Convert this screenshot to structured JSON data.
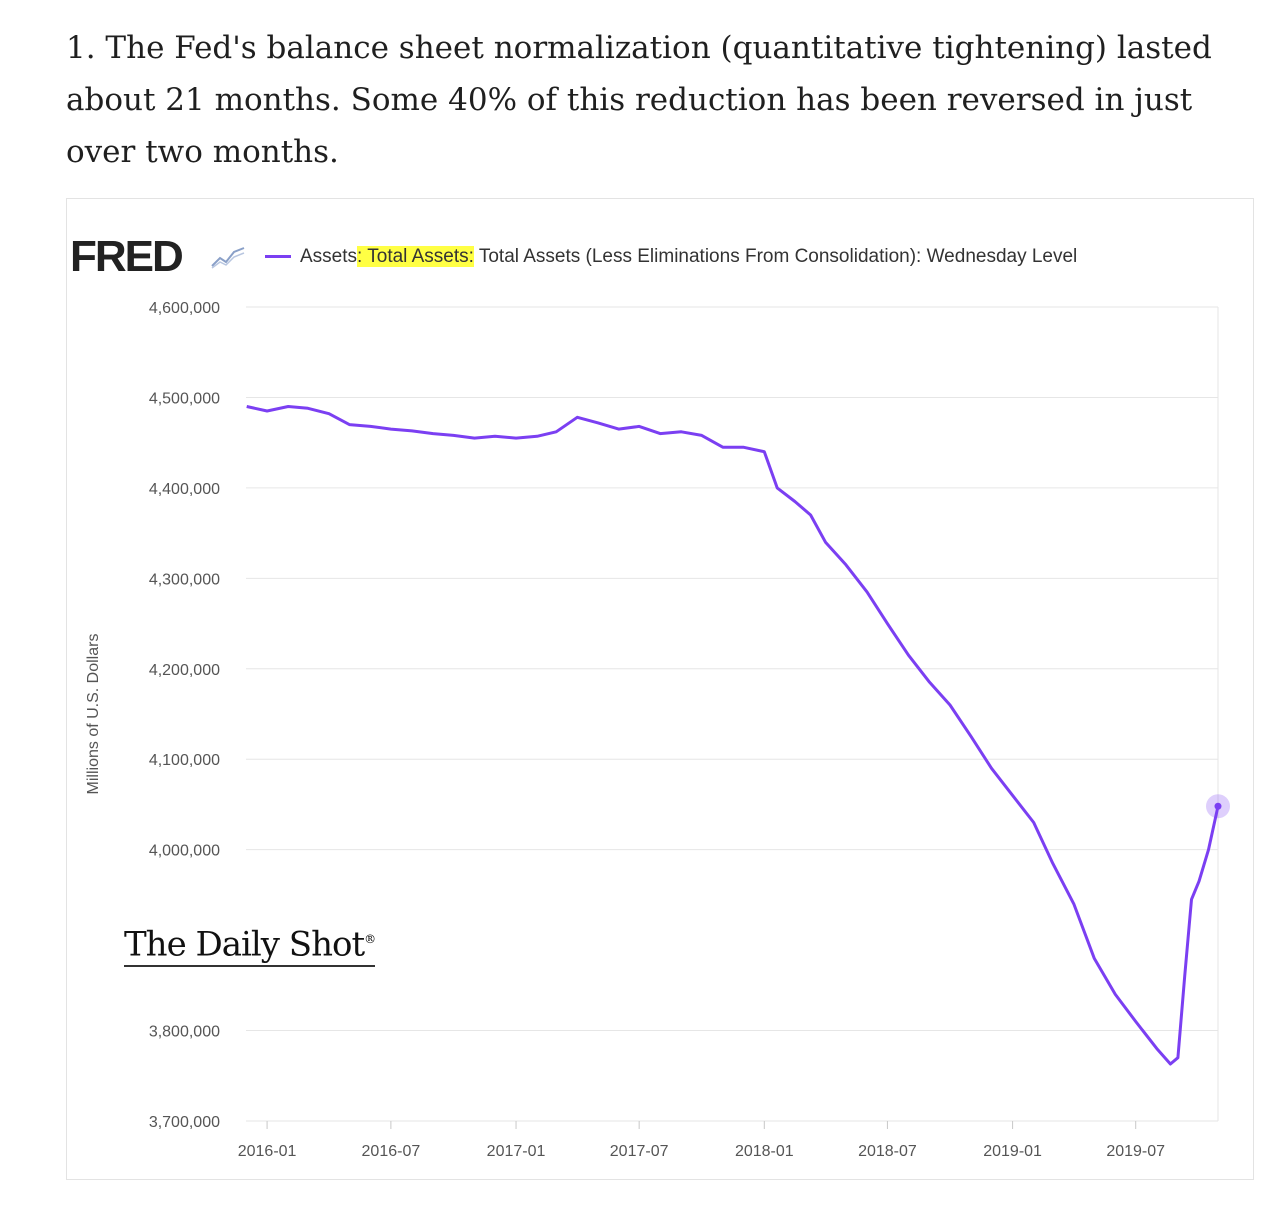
{
  "intro": {
    "text": "1. The Fed's balance sheet normalization (quantitative tightening) lasted about 21 months. Some 40% of this reduction has been reversed in just over two months."
  },
  "brand": {
    "name": "FRED",
    "icon": "line-chart-icon"
  },
  "watermark": {
    "name": "The Daily Shot",
    "mark": "®"
  },
  "colors": {
    "series": "#7b3ff2",
    "highlight": "#ffff44",
    "grid": "#e6e6e6"
  },
  "chart_data": {
    "type": "line",
    "legend": {
      "prefix": "Assets",
      "highlight": ": Total Assets:",
      "suffix": " Total Assets (Less Eliminations From Consolidation): Wednesday Level"
    },
    "ylabel": "Millions of U.S. Dollars",
    "ylim": [
      3700000,
      4600000
    ],
    "yticks": [
      {
        "value": 3700000,
        "label": "3,700,000"
      },
      {
        "value": 3800000,
        "label": "3,800,000"
      },
      {
        "value": 4000000,
        "label": "4,000,000"
      },
      {
        "value": 4100000,
        "label": "4,100,000"
      },
      {
        "value": 4200000,
        "label": "4,200,000"
      },
      {
        "value": 4300000,
        "label": "4,300,000"
      },
      {
        "value": 4400000,
        "label": "4,400,000"
      },
      {
        "value": 4500000,
        "label": "4,500,000"
      },
      {
        "value": 4600000,
        "label": "4,600,000"
      }
    ],
    "xlim": [
      "2015-12-01",
      "2019-10-30"
    ],
    "xticks": [
      "2016-01",
      "2016-07",
      "2017-01",
      "2017-07",
      "2018-01",
      "2018-07",
      "2019-01",
      "2019-07"
    ],
    "grid": true,
    "series": [
      {
        "points": [
          [
            "2015-12-02",
            4490000
          ],
          [
            "2016-01-01",
            4485000
          ],
          [
            "2016-02-01",
            4490000
          ],
          [
            "2016-03-01",
            4488000
          ],
          [
            "2016-04-01",
            4482000
          ],
          [
            "2016-05-01",
            4470000
          ],
          [
            "2016-06-01",
            4468000
          ],
          [
            "2016-07-01",
            4465000
          ],
          [
            "2016-08-01",
            4463000
          ],
          [
            "2016-09-01",
            4460000
          ],
          [
            "2016-10-01",
            4458000
          ],
          [
            "2016-11-01",
            4455000
          ],
          [
            "2016-12-01",
            4457000
          ],
          [
            "2017-01-01",
            4455000
          ],
          [
            "2017-02-01",
            4457000
          ],
          [
            "2017-03-01",
            4462000
          ],
          [
            "2017-04-01",
            4478000
          ],
          [
            "2017-05-01",
            4472000
          ],
          [
            "2017-06-01",
            4465000
          ],
          [
            "2017-07-01",
            4468000
          ],
          [
            "2017-08-01",
            4460000
          ],
          [
            "2017-09-01",
            4462000
          ],
          [
            "2017-10-01",
            4458000
          ],
          [
            "2017-11-01",
            4445000
          ],
          [
            "2017-12-01",
            4445000
          ],
          [
            "2018-01-01",
            4440000
          ],
          [
            "2018-01-20",
            4400000
          ],
          [
            "2018-02-15",
            4385000
          ],
          [
            "2018-03-10",
            4370000
          ],
          [
            "2018-04-01",
            4340000
          ],
          [
            "2018-05-01",
            4315000
          ],
          [
            "2018-06-01",
            4285000
          ],
          [
            "2018-07-01",
            4250000
          ],
          [
            "2018-08-01",
            4215000
          ],
          [
            "2018-09-01",
            4185000
          ],
          [
            "2018-10-01",
            4160000
          ],
          [
            "2018-11-01",
            4125000
          ],
          [
            "2018-12-01",
            4090000
          ],
          [
            "2019-01-01",
            4060000
          ],
          [
            "2019-02-01",
            4030000
          ],
          [
            "2019-03-01",
            3985000
          ],
          [
            "2019-04-01",
            3940000
          ],
          [
            "2019-05-01",
            3880000
          ],
          [
            "2019-06-01",
            3840000
          ],
          [
            "2019-07-01",
            3810000
          ],
          [
            "2019-08-01",
            3780000
          ],
          [
            "2019-08-21",
            3763000
          ],
          [
            "2019-09-01",
            3770000
          ],
          [
            "2019-09-11",
            3860000
          ],
          [
            "2019-09-21",
            3945000
          ],
          [
            "2019-10-02",
            3965000
          ],
          [
            "2019-10-16",
            4000000
          ],
          [
            "2019-10-30",
            4048000
          ]
        ]
      }
    ]
  }
}
